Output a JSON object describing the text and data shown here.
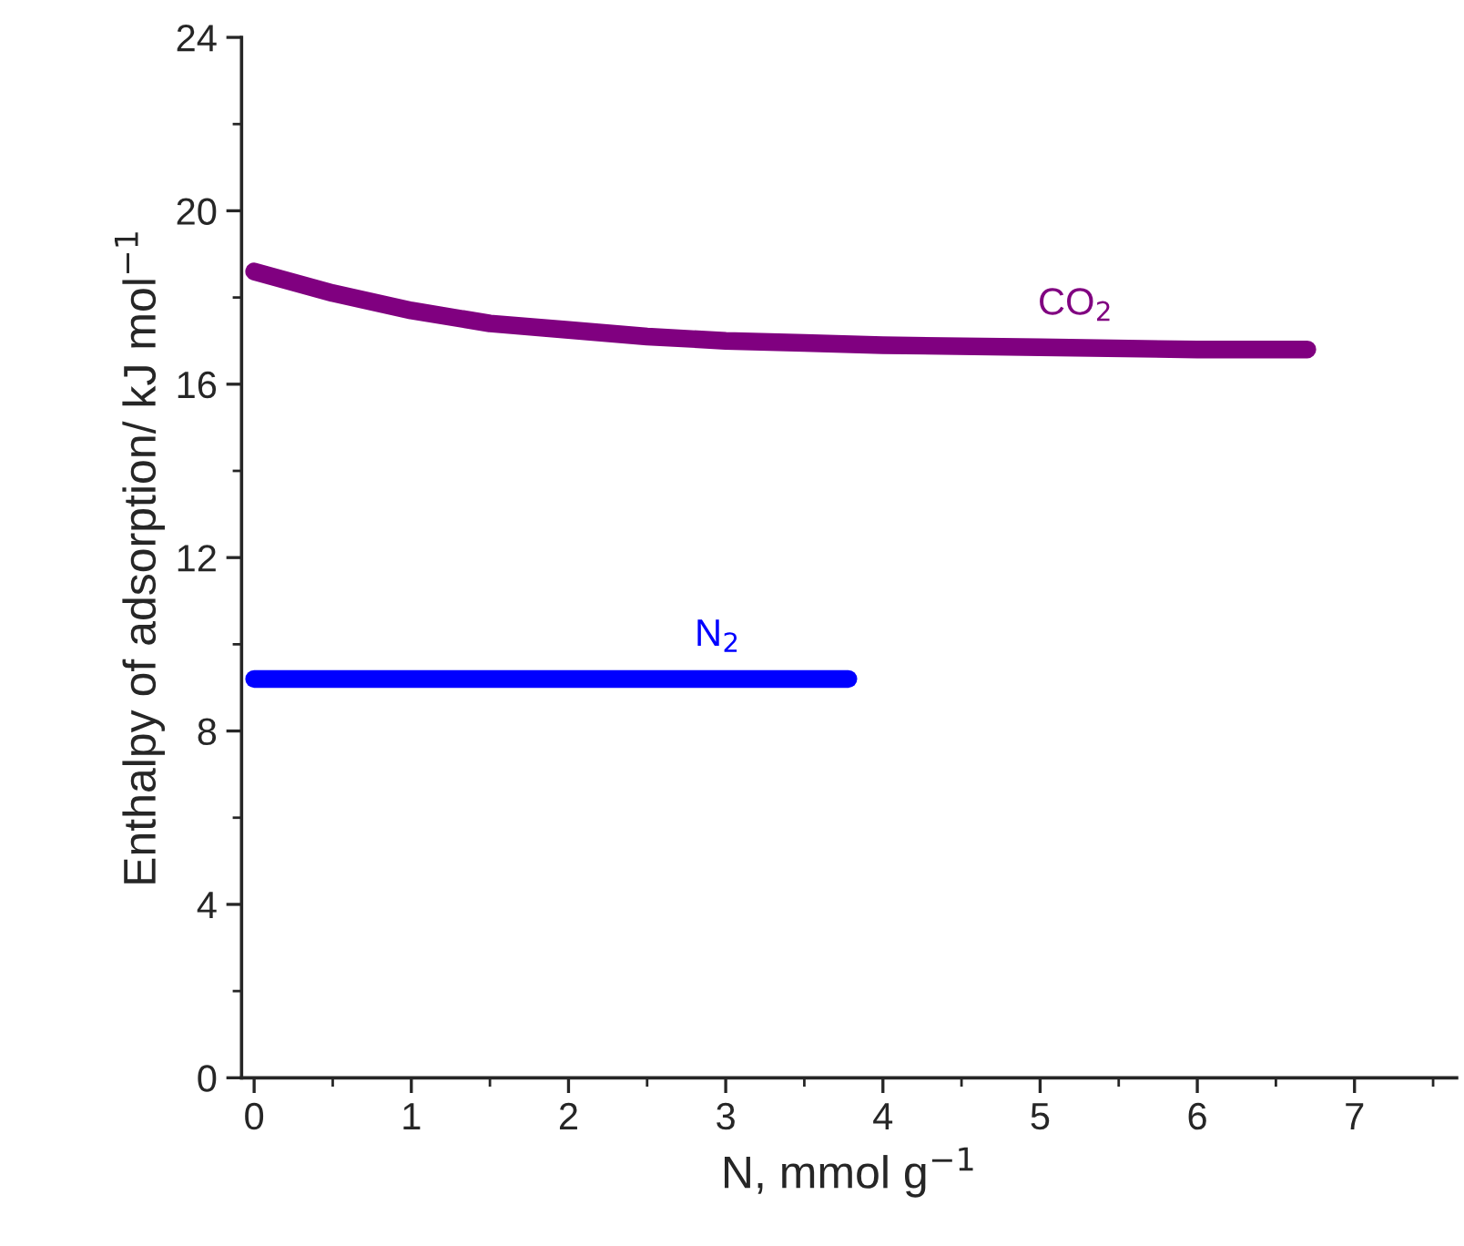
{
  "chart_data": {
    "type": "line",
    "xlabel": "N, mmol g$^{−1}$",
    "ylabel": "Enthalpy of adsorption/ kJ mol$^{−1}$",
    "xlim": [
      -0.08,
      7.65
    ],
    "xticks": [
      0,
      1,
      2,
      3,
      4,
      5,
      6,
      7
    ],
    "ylim": [
      0,
      24
    ],
    "yticks": [
      0,
      4,
      8,
      12,
      16,
      20,
      24
    ],
    "grid": false,
    "legend": false,
    "marker": "none",
    "line_style": "solid",
    "series": [
      {
        "name": "CO$_{2}$",
        "color": "#800080",
        "x": [
          0,
          0.5,
          1,
          1.5,
          2,
          2.5,
          3,
          3.5,
          4,
          5,
          6,
          6.7
        ],
        "values": [
          18.6,
          18.1,
          17.7,
          17.4,
          17.25,
          17.1,
          17.0,
          16.95,
          16.9,
          16.85,
          16.8,
          16.8
        ]
      },
      {
        "name": "N$_{2}$",
        "color": "#0000ff",
        "x": [
          0,
          1,
          2,
          3,
          3.78
        ],
        "values": [
          9.2,
          9.2,
          9.2,
          9.2,
          9.2
        ]
      }
    ]
  }
}
